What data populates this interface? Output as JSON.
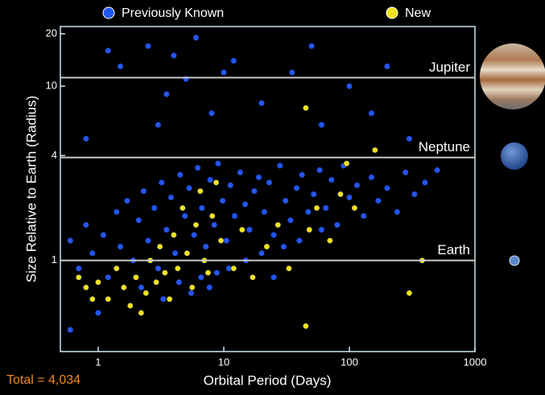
{
  "chart_data": {
    "type": "scatter",
    "xlabel": "Orbital Period (Days)",
    "ylabel": "Size Relative to Earth (Radius)",
    "log_x": true,
    "log_y": true,
    "xlim": [
      0.5,
      1000
    ],
    "ylim": [
      0.3,
      22
    ],
    "xticks": [
      1,
      10,
      100,
      1000
    ],
    "yticks": [
      1,
      4,
      10,
      20
    ],
    "legend": "top",
    "annotation": "Total = 4,034",
    "reference_lines": [
      {
        "label": "Jupiter",
        "value": 11.2
      },
      {
        "label": "Neptune",
        "value": 3.9
      },
      {
        "label": "Earth",
        "value": 1
      }
    ],
    "series": [
      {
        "name": "Previously Known",
        "color": "#2456f0",
        "x": [
          0.6,
          0.7,
          0.8,
          0.9,
          1.1,
          1.2,
          1.4,
          1.5,
          1.7,
          1.9,
          2.1,
          2.3,
          2.5,
          2.8,
          3.0,
          3.2,
          3.5,
          3.8,
          4.1,
          4.5,
          4.9,
          5.3,
          5.8,
          6.2,
          6.7,
          7.2,
          7.8,
          8.4,
          9.0,
          9.8,
          10.5,
          11.3,
          12.2,
          13.5,
          14.8,
          16.0,
          17.5,
          19.0,
          21,
          23,
          25,
          28,
          31,
          34,
          38,
          42,
          47,
          52,
          58,
          65,
          72,
          80,
          90,
          100,
          115,
          130,
          150,
          170,
          200,
          240,
          280,
          330,
          400,
          500,
          2.2,
          3.3,
          4.4,
          5.5,
          6.6,
          7.7,
          8.8,
          11,
          15,
          20,
          30,
          40,
          60,
          1.5,
          2.5,
          3.5,
          4,
          5,
          8,
          12,
          20,
          35,
          60,
          100,
          200,
          300,
          0.8,
          1.2,
          3,
          6,
          10,
          50,
          150,
          0.6,
          1.0,
          25
        ],
        "values": [
          1.3,
          0.9,
          1.6,
          1.1,
          1.4,
          0.8,
          1.9,
          1.2,
          2.2,
          1.0,
          1.7,
          2.5,
          1.3,
          2.0,
          0.9,
          2.8,
          1.5,
          2.3,
          1.1,
          3.1,
          1.8,
          2.6,
          1.4,
          3.4,
          2.0,
          1.2,
          2.9,
          1.6,
          3.6,
          2.2,
          1.3,
          2.7,
          1.8,
          3.2,
          2.1,
          1.5,
          2.5,
          3.0,
          1.9,
          2.8,
          1.4,
          3.5,
          2.2,
          1.7,
          2.6,
          3.1,
          1.9,
          2.4,
          3.3,
          2.0,
          2.9,
          1.6,
          3.5,
          2.3,
          2.7,
          1.8,
          3.0,
          2.2,
          2.6,
          1.9,
          3.2,
          2.4,
          2.8,
          3.3,
          0.7,
          0.6,
          0.75,
          0.65,
          0.8,
          0.7,
          0.85,
          0.9,
          1.0,
          1.1,
          1.2,
          1.3,
          1.5,
          13,
          17,
          9,
          15,
          11,
          7,
          14,
          8,
          12,
          6,
          10,
          13,
          5,
          5,
          16,
          6,
          19,
          12,
          17,
          7,
          0.4,
          0.5,
          0.8
        ]
      },
      {
        "name": "New",
        "color": "#f2e21c",
        "x": [
          0.7,
          0.8,
          0.9,
          1.0,
          1.2,
          1.4,
          1.6,
          1.8,
          2.0,
          2.2,
          2.4,
          2.6,
          2.9,
          3.1,
          3.4,
          3.7,
          4.0,
          4.3,
          4.7,
          5.1,
          5.6,
          6.0,
          6.5,
          7.0,
          7.5,
          8.1,
          8.7,
          9.5,
          12,
          14,
          17,
          22,
          27,
          33,
          45,
          48,
          55,
          70,
          85,
          95,
          110,
          160,
          300,
          380,
          45
        ],
        "values": [
          0.8,
          0.7,
          0.6,
          0.75,
          0.6,
          0.9,
          0.7,
          0.55,
          0.8,
          0.5,
          0.65,
          1.0,
          0.75,
          1.2,
          0.85,
          0.6,
          1.4,
          0.9,
          2.0,
          1.1,
          0.7,
          1.6,
          2.5,
          1.0,
          0.85,
          1.8,
          2.8,
          1.3,
          0.9,
          1.5,
          0.8,
          1.2,
          1.6,
          0.9,
          7.5,
          1.5,
          2.0,
          1.3,
          2.4,
          3.6,
          2.0,
          4.3,
          0.65,
          1.0,
          0.42
        ]
      }
    ]
  }
}
